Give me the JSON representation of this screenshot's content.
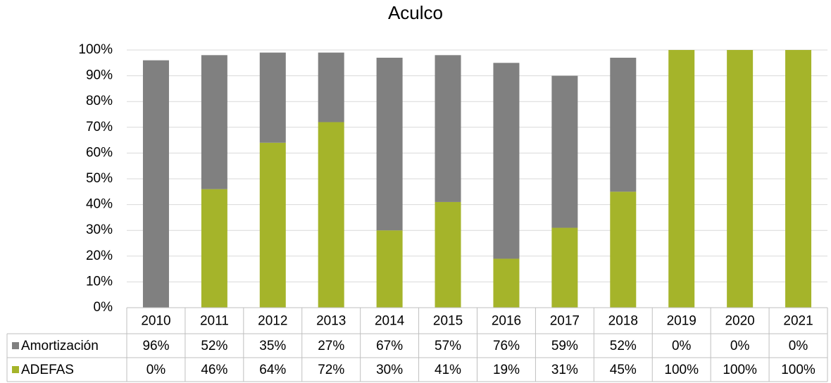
{
  "chart_data": {
    "type": "stacked_bar",
    "title": "Aculco",
    "categories": [
      "2010",
      "2011",
      "2012",
      "2013",
      "2014",
      "2015",
      "2016",
      "2017",
      "2018",
      "2019",
      "2020",
      "2021"
    ],
    "series": [
      {
        "name": "Amortización",
        "color": "#808080",
        "values": [
          96,
          52,
          35,
          27,
          67,
          57,
          76,
          59,
          52,
          0,
          0,
          0
        ],
        "value_labels": [
          "96%",
          "52%",
          "35%",
          "27%",
          "67%",
          "57%",
          "76%",
          "59%",
          "52%",
          "0%",
          "0%",
          "0%"
        ]
      },
      {
        "name": "ADEFAS",
        "color": "#a5b42a",
        "values": [
          0,
          46,
          64,
          72,
          30,
          41,
          19,
          31,
          45,
          100,
          100,
          100
        ],
        "value_labels": [
          "0%",
          "46%",
          "64%",
          "72%",
          "30%",
          "41%",
          "19%",
          "31%",
          "45%",
          "100%",
          "100%",
          "100%"
        ]
      }
    ],
    "ylim": [
      0,
      100
    ],
    "yticks": [
      {
        "value": 0,
        "label": "0%"
      },
      {
        "value": 10,
        "label": "10%"
      },
      {
        "value": 20,
        "label": "20%"
      },
      {
        "value": 30,
        "label": "30%"
      },
      {
        "value": 40,
        "label": "40%"
      },
      {
        "value": 50,
        "label": "50%"
      },
      {
        "value": 60,
        "label": "60%"
      },
      {
        "value": 70,
        "label": "70%"
      },
      {
        "value": 80,
        "label": "80%"
      },
      {
        "value": 90,
        "label": "90%"
      },
      {
        "value": 100,
        "label": "100%"
      }
    ],
    "grid": true
  }
}
